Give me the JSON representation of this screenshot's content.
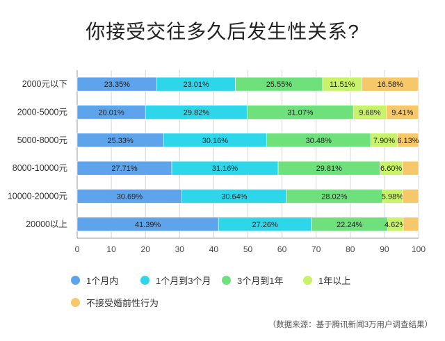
{
  "chart_data": {
    "type": "bar",
    "orientation": "horizontal",
    "stacked": true,
    "title": "你接受交往多久后发生性关系?",
    "categories": [
      "2000元以下",
      "2000-5000元",
      "5000-8000元",
      "8000-10000元",
      "10000-20000元",
      "20000以上"
    ],
    "series": [
      {
        "name": "1个月内",
        "color": "#5da4ec",
        "values": [
          23.35,
          20.01,
          25.33,
          27.71,
          30.69,
          41.39
        ],
        "labels": [
          "23.35%",
          "20.01%",
          "25.33%",
          "27.71%",
          "30.69%",
          "41.39%"
        ]
      },
      {
        "name": "1个月到3个月",
        "color": "#2ed6ea",
        "values": [
          23.01,
          29.82,
          30.16,
          31.16,
          30.64,
          27.26
        ],
        "labels": [
          "23.01%",
          "29.82%",
          "30.16%",
          "31.16%",
          "30.64%",
          "27.26%"
        ]
      },
      {
        "name": "3个月到1年",
        "color": "#6ee07c",
        "values": [
          25.55,
          31.07,
          30.48,
          29.81,
          28.02,
          22.24
        ],
        "labels": [
          "25.55%",
          "31.07%",
          "30.48%",
          "29.81%",
          "28.02%",
          "22.24%"
        ]
      },
      {
        "name": "1年以上",
        "color": "#c8f26a",
        "values": [
          11.51,
          9.68,
          7.9,
          6.6,
          5.98,
          4.62
        ],
        "labels": [
          "11.51%",
          "9.68%",
          "7.90%",
          "6.60%",
          "5.98%",
          "4.62%"
        ]
      },
      {
        "name": "不接受婚前性行为",
        "color": "#f6c86a",
        "values": [
          16.58,
          9.41,
          6.13,
          4.72,
          4.67,
          4.49
        ],
        "labels": [
          "16.58%",
          "9.41%",
          "6.13%",
          "",
          "",
          ""
        ]
      }
    ],
    "xlim": [
      0,
      100
    ],
    "xticks": [
      0,
      10,
      20,
      30,
      40,
      50,
      60,
      70,
      80,
      90,
      100
    ],
    "grid": true,
    "legend_position": "bottom",
    "source": "（数据来源：基于腾讯新闻3万用户调查结果）"
  }
}
